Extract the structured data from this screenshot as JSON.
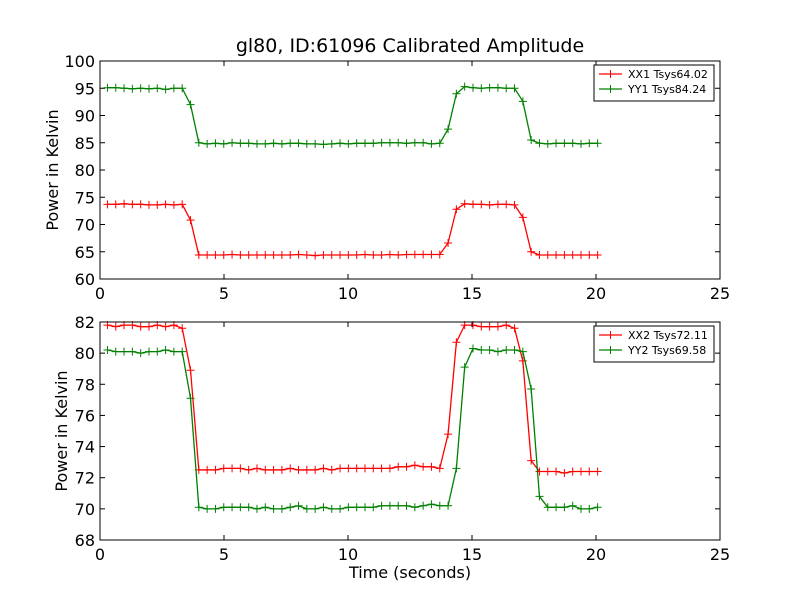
{
  "figure": {
    "title": "gl80, ID:61096 Calibrated Amplitude"
  },
  "chart_data": [
    {
      "type": "line",
      "title": "gl80, ID:61096 Calibrated Amplitude",
      "xlabel": "",
      "ylabel": "Power in Kelvin",
      "xlim": [
        0,
        25
      ],
      "ylim": [
        60,
        100
      ],
      "xticks": [
        "0",
        "5",
        "10",
        "15",
        "20",
        "25"
      ],
      "yticks": [
        "60",
        "65",
        "70",
        "75",
        "80",
        "85",
        "90",
        "95",
        "100"
      ],
      "grid": false,
      "legend_position": "top-right",
      "x": [
        0.3,
        0.635,
        0.97,
        1.305,
        1.64,
        1.975,
        2.31,
        2.645,
        2.98,
        3.315,
        3.65,
        3.985,
        4.32,
        4.655,
        4.99,
        5.325,
        5.66,
        5.995,
        6.33,
        6.665,
        7.0,
        7.335,
        7.67,
        8.005,
        8.34,
        8.675,
        9.01,
        9.345,
        9.68,
        10.015,
        10.35,
        10.685,
        11.02,
        11.355,
        11.69,
        12.025,
        12.36,
        12.695,
        13.03,
        13.365,
        13.7,
        14.035,
        14.37,
        14.705,
        15.04,
        15.375,
        15.71,
        16.045,
        16.38,
        16.715,
        17.05,
        17.385,
        17.72,
        18.055,
        18.39,
        18.725,
        19.06,
        19.395,
        19.73,
        20.065
      ],
      "series": [
        {
          "name": "XX1 Tsys64.02",
          "color": "#ff0000",
          "values": [
            73.7,
            73.7,
            73.8,
            73.7,
            73.7,
            73.6,
            73.6,
            73.7,
            73.6,
            73.7,
            70.8,
            64.4,
            64.4,
            64.4,
            64.4,
            64.5,
            64.4,
            64.4,
            64.4,
            64.4,
            64.4,
            64.4,
            64.4,
            64.5,
            64.4,
            64.3,
            64.4,
            64.4,
            64.4,
            64.4,
            64.4,
            64.5,
            64.4,
            64.4,
            64.5,
            64.4,
            64.5,
            64.5,
            64.5,
            64.5,
            64.5,
            66.6,
            72.8,
            73.8,
            73.7,
            73.7,
            73.6,
            73.7,
            73.7,
            73.6,
            71.3,
            65.0,
            64.4,
            64.4,
            64.4,
            64.4,
            64.4,
            64.4,
            64.4,
            64.4
          ]
        },
        {
          "name": "YY1 Tsys84.24",
          "color": "#008000",
          "values": [
            95.1,
            95.1,
            95.0,
            94.9,
            95.0,
            94.9,
            95.0,
            94.8,
            95.0,
            95.0,
            92.0,
            85.0,
            84.8,
            84.9,
            84.8,
            85.0,
            84.9,
            84.9,
            84.8,
            84.8,
            84.9,
            84.8,
            84.9,
            84.9,
            84.8,
            84.8,
            84.7,
            84.8,
            84.9,
            84.8,
            84.9,
            84.9,
            84.9,
            85.0,
            85.0,
            85.0,
            84.9,
            85.0,
            85.0,
            84.8,
            84.9,
            87.5,
            94.0,
            95.3,
            95.1,
            95.0,
            95.1,
            95.1,
            95.0,
            95.0,
            92.6,
            85.5,
            84.9,
            84.8,
            84.9,
            84.9,
            84.9,
            84.8,
            84.9,
            84.9
          ]
        }
      ]
    },
    {
      "type": "line",
      "title": "",
      "xlabel": "Time (seconds)",
      "ylabel": "Power in Kelvin",
      "xlim": [
        0,
        25
      ],
      "ylim": [
        68,
        82
      ],
      "xticks": [
        "0",
        "5",
        "10",
        "15",
        "20",
        "25"
      ],
      "yticks": [
        "68",
        "70",
        "72",
        "74",
        "76",
        "78",
        "80",
        "82"
      ],
      "grid": false,
      "legend_position": "top-right",
      "x": [
        0.3,
        0.635,
        0.97,
        1.305,
        1.64,
        1.975,
        2.31,
        2.645,
        2.98,
        3.315,
        3.65,
        3.985,
        4.32,
        4.655,
        4.99,
        5.325,
        5.66,
        5.995,
        6.33,
        6.665,
        7.0,
        7.335,
        7.67,
        8.005,
        8.34,
        8.675,
        9.01,
        9.345,
        9.68,
        10.015,
        10.35,
        10.685,
        11.02,
        11.355,
        11.69,
        12.025,
        12.36,
        12.695,
        13.03,
        13.365,
        13.7,
        14.035,
        14.37,
        14.705,
        15.04,
        15.375,
        15.71,
        16.045,
        16.38,
        16.715,
        17.05,
        17.385,
        17.72,
        18.055,
        18.39,
        18.725,
        19.06,
        19.395,
        19.73,
        20.065
      ],
      "series": [
        {
          "name": "XX2 Tsys72.11",
          "color": "#ff0000",
          "values": [
            81.8,
            81.7,
            81.8,
            81.8,
            81.7,
            81.7,
            81.8,
            81.7,
            81.8,
            81.6,
            78.9,
            72.5,
            72.5,
            72.5,
            72.6,
            72.6,
            72.6,
            72.5,
            72.6,
            72.5,
            72.5,
            72.5,
            72.6,
            72.5,
            72.5,
            72.5,
            72.6,
            72.5,
            72.6,
            72.6,
            72.6,
            72.6,
            72.6,
            72.6,
            72.6,
            72.7,
            72.7,
            72.8,
            72.7,
            72.7,
            72.6,
            74.8,
            80.7,
            81.8,
            81.8,
            81.7,
            81.7,
            81.7,
            81.8,
            81.6,
            79.5,
            73.1,
            72.4,
            72.4,
            72.4,
            72.3,
            72.4,
            72.4,
            72.4,
            72.4
          ]
        },
        {
          "name": "YY2 Tsys69.58",
          "color": "#008000",
          "values": [
            80.2,
            80.1,
            80.1,
            80.1,
            80.0,
            80.1,
            80.1,
            80.2,
            80.1,
            80.1,
            77.1,
            70.1,
            70.0,
            70.0,
            70.1,
            70.1,
            70.1,
            70.1,
            70.0,
            70.1,
            70.0,
            70.0,
            70.1,
            70.2,
            70.0,
            70.0,
            70.1,
            70.0,
            70.0,
            70.1,
            70.1,
            70.1,
            70.1,
            70.2,
            70.2,
            70.2,
            70.2,
            70.1,
            70.2,
            70.3,
            70.2,
            70.2,
            72.6,
            79.1,
            80.3,
            80.2,
            80.2,
            80.1,
            80.2,
            80.2,
            80.1,
            77.7,
            70.8,
            70.1,
            70.1,
            70.1,
            70.2,
            70.0,
            70.0,
            70.1
          ]
        }
      ]
    }
  ]
}
